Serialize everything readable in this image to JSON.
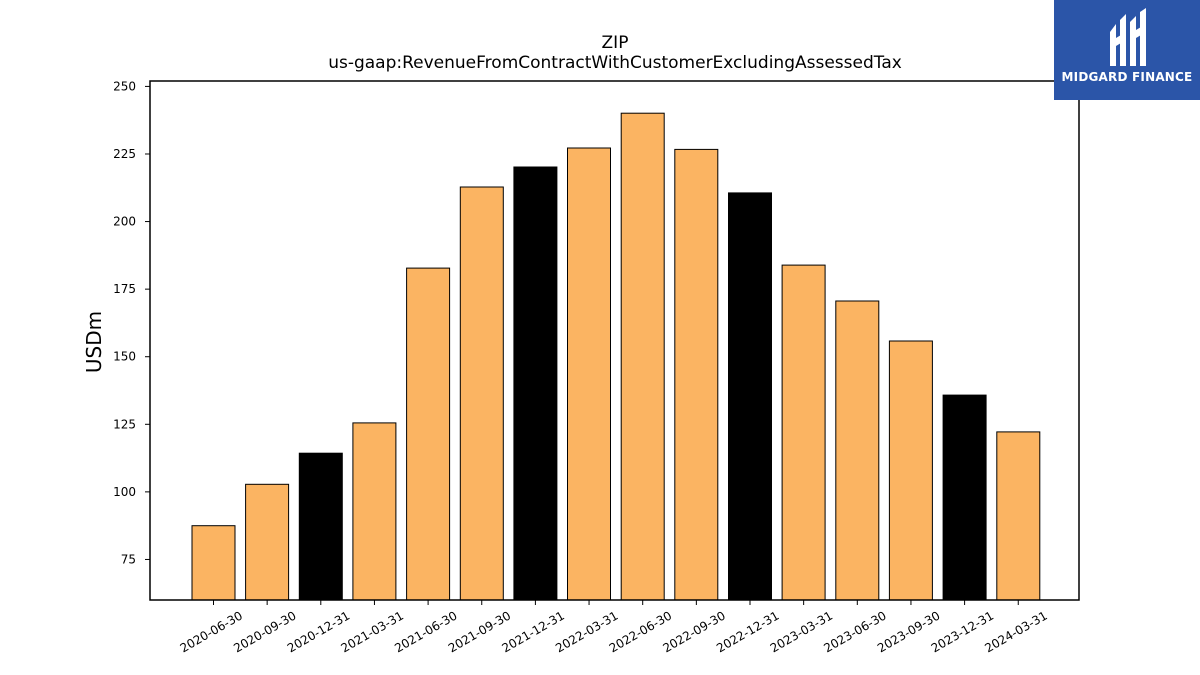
{
  "brand": {
    "name": "MIDGARD FINANCE",
    "logo_icon": "midgard-logo-icon",
    "color": "#2b55a8"
  },
  "chart_data": {
    "type": "bar",
    "title": "ZIP",
    "subtitle": "us-gaap:RevenueFromContractWithCustomerExcludingAssessedTax",
    "xlabel": "",
    "ylabel": "USDm",
    "ylim": [
      60,
      252
    ],
    "yticks": [
      75,
      100,
      125,
      150,
      175,
      200,
      225,
      250
    ],
    "grid": false,
    "colors": {
      "default": "#fbb462",
      "highlight": "#000000",
      "edge": "#000000"
    },
    "categories": [
      "2020-06-30",
      "2020-09-30",
      "2020-12-31",
      "2021-03-31",
      "2021-06-30",
      "2021-09-30",
      "2021-12-31",
      "2022-03-31",
      "2022-06-30",
      "2022-09-30",
      "2022-12-31",
      "2023-03-31",
      "2023-06-30",
      "2023-09-30",
      "2023-12-31",
      "2024-03-31"
    ],
    "values": [
      87.5,
      102.8,
      114.3,
      125.5,
      182.8,
      212.8,
      220.2,
      227.2,
      240.1,
      226.7,
      210.6,
      183.9,
      170.6,
      155.8,
      135.8,
      122.2
    ],
    "highlighted": [
      false,
      false,
      true,
      false,
      false,
      false,
      true,
      false,
      false,
      false,
      true,
      false,
      false,
      false,
      true,
      false
    ]
  }
}
